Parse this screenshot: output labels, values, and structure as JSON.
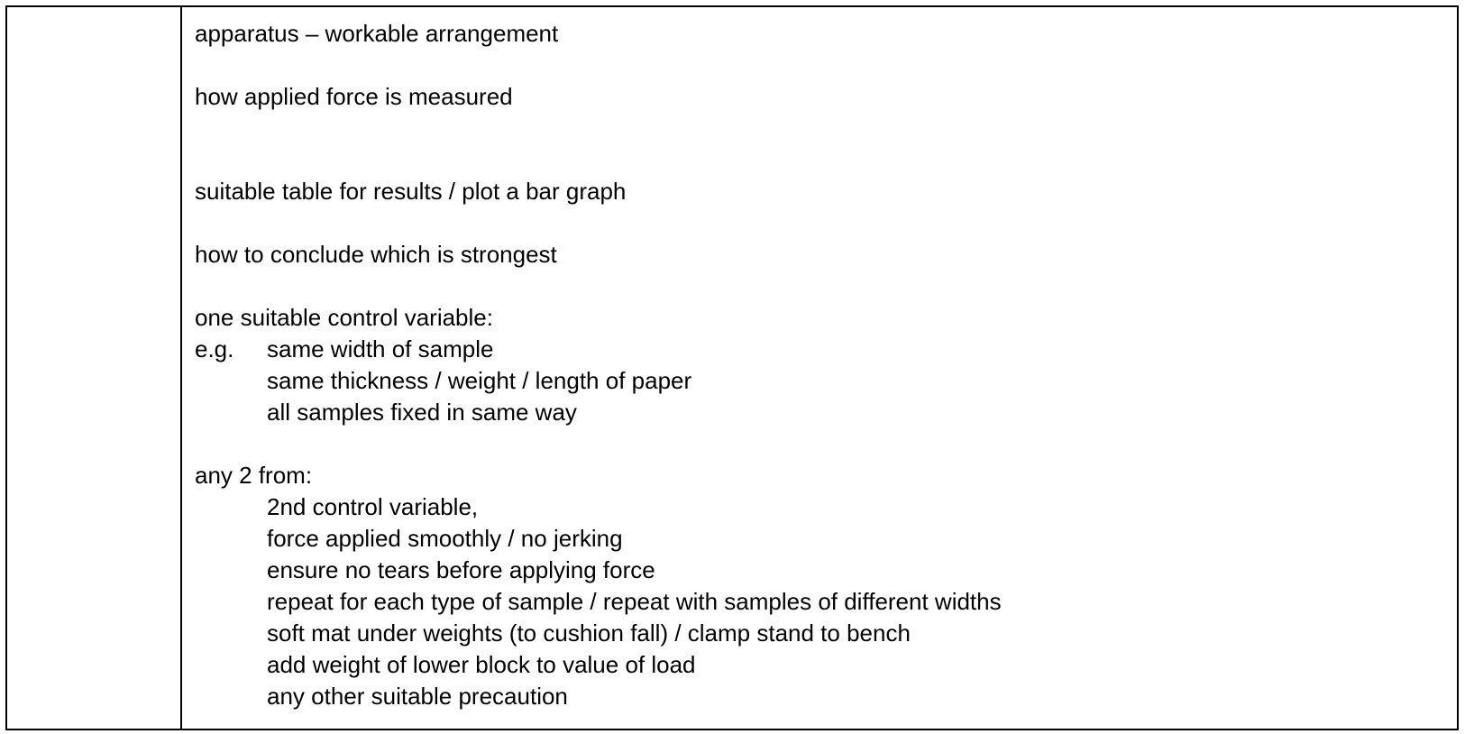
{
  "content": {
    "apparatus": "apparatus – workable arrangement",
    "force_measured": "how applied force is measured",
    "table_results": "suitable table for results / plot a bar graph",
    "conclude": "how to conclude which is strongest",
    "control_intro": "one suitable control variable:",
    "eg_label": "e.g.",
    "control_items": [
      "same width of sample",
      "same thickness / weight / length of paper",
      "all samples fixed in same way"
    ],
    "any_two_intro": "any 2 from:",
    "any_two_items": [
      "2nd control variable,",
      "force applied smoothly / no jerking",
      "ensure no tears before applying force",
      "repeat for each type of sample / repeat with samples of different widths",
      "soft mat under weights (to cushion fall) / clamp stand to bench",
      "add weight of lower block to value of load",
      "any other suitable precaution"
    ]
  }
}
